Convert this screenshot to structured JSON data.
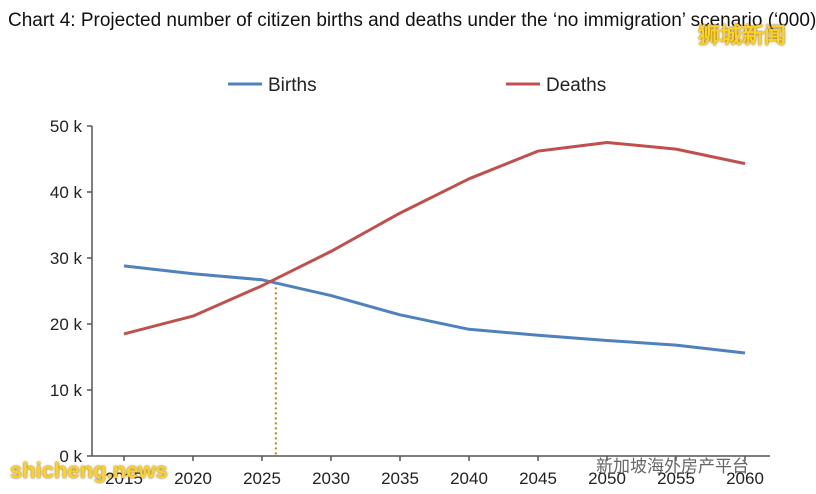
{
  "title": "Chart 4: Projected number of citizen births and deaths under the ‘no immigration’ scenario (‘000)",
  "watermarks": {
    "top_right": "狮城新闻",
    "bottom_left": "shicheng.news",
    "bottom_right": "新加坡海外房产平台"
  },
  "colors": {
    "births": "#4f81bd",
    "deaths": "#c0504d",
    "marker": "#b8860b",
    "axis": "#555555",
    "grid": "#dddddd"
  },
  "chart_data": {
    "type": "line",
    "title": "Chart 4: Projected number of citizen births and deaths under the ‘no immigration’ scenario (‘000)",
    "xlabel": "",
    "ylabel": "",
    "x": [
      2015,
      2020,
      2025,
      2030,
      2035,
      2040,
      2045,
      2050,
      2055,
      2060
    ],
    "x_tick_labels": [
      "2015",
      "2020",
      "2025",
      "2030",
      "2035",
      "2040",
      "2045",
      "2050",
      "2055",
      "2060"
    ],
    "ylim": [
      0,
      50000
    ],
    "y_tick_labels": [
      "0 k",
      "10 k",
      "20 k",
      "30 k",
      "40 k",
      "50 k"
    ],
    "series": [
      {
        "name": "Births",
        "values": [
          28800,
          27600,
          26700,
          24300,
          21400,
          19200,
          18300,
          17500,
          16800,
          15600
        ]
      },
      {
        "name": "Deaths",
        "values": [
          18500,
          21200,
          25800,
          31000,
          36800,
          42000,
          46200,
          47500,
          46500,
          44300
        ]
      }
    ],
    "crossover_x": 2026,
    "legend_position": "top",
    "grid": false
  }
}
